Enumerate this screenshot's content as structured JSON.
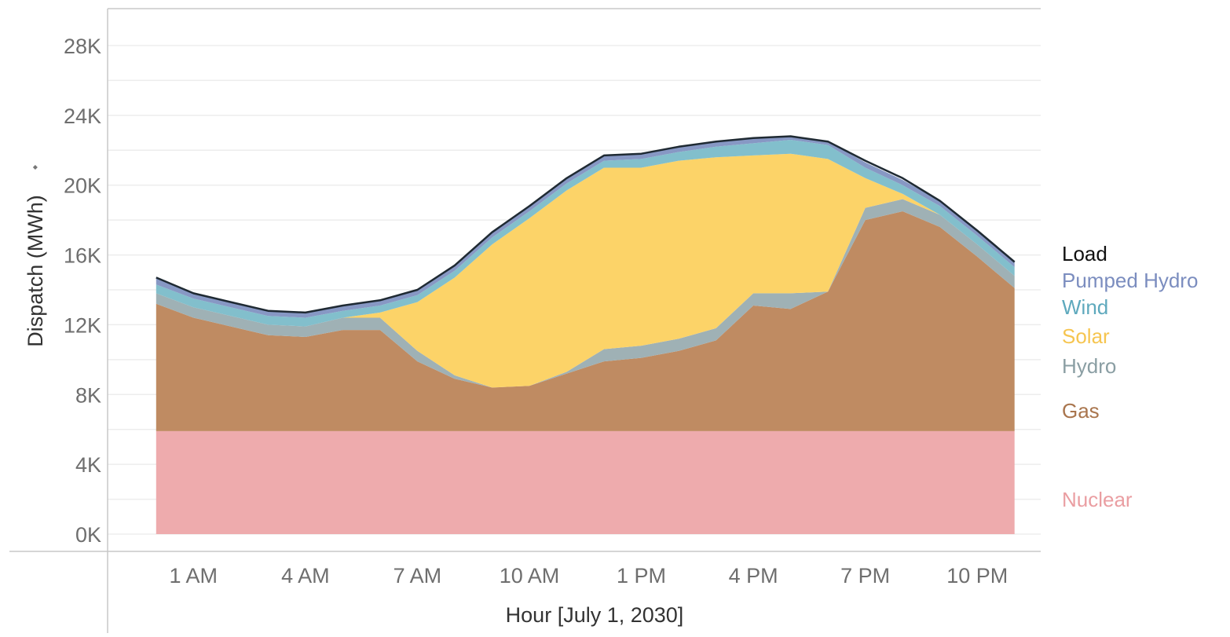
{
  "chart_data": {
    "type": "area",
    "stacked": true,
    "xlabel": "Hour [July 1, 2030]",
    "ylabel": "Dispatch (MWh)",
    "ylabel_sort_marker": "⬩",
    "ylim": [
      0,
      30000
    ],
    "yticks": [
      0,
      4000,
      8000,
      12000,
      16000,
      20000,
      24000,
      28000
    ],
    "ytick_labels": [
      "0K",
      "4K",
      "8K",
      "12K",
      "16K",
      "20K",
      "24K",
      "28K"
    ],
    "x_hours": [
      0,
      1,
      2,
      3,
      4,
      5,
      6,
      7,
      8,
      9,
      10,
      11,
      12,
      13,
      14,
      15,
      16,
      17,
      18,
      19,
      20,
      21,
      22,
      23
    ],
    "xlim": [
      -1.3,
      23.7
    ],
    "xticks": [
      1,
      4,
      7,
      10,
      13,
      16,
      19,
      22
    ],
    "xtick_labels": [
      "1 AM",
      "4 AM",
      "7 AM",
      "10 AM",
      "1 PM",
      "4 PM",
      "7 PM",
      "10 PM"
    ],
    "series": [
      {
        "name": "Nuclear",
        "color": "#eeabad",
        "values": [
          5900,
          5900,
          5900,
          5900,
          5900,
          5900,
          5900,
          5900,
          5900,
          5900,
          5900,
          5900,
          5900,
          5900,
          5900,
          5900,
          5900,
          5900,
          5900,
          5900,
          5900,
          5900,
          5900,
          5900
        ]
      },
      {
        "name": "Gas",
        "color": "#bf8b62",
        "values": [
          7300,
          6500,
          6000,
          5500,
          5400,
          5800,
          5800,
          4000,
          3000,
          2500,
          2600,
          3300,
          4000,
          4200,
          4600,
          5200,
          7200,
          7000,
          8000,
          12100,
          12600,
          11700,
          10000,
          8200
        ]
      },
      {
        "name": "Hydro",
        "color": "#9fb1b5",
        "values": [
          600,
          600,
          600,
          600,
          600,
          700,
          700,
          600,
          200,
          0,
          0,
          100,
          700,
          700,
          700,
          700,
          700,
          900,
          0,
          700,
          700,
          700,
          700,
          700
        ]
      },
      {
        "name": "Solar",
        "color": "#fcd368",
        "values": [
          0,
          0,
          0,
          0,
          0,
          0,
          300,
          2800,
          5600,
          8200,
          9600,
          10400,
          10400,
          10200,
          10200,
          9800,
          7900,
          8000,
          7600,
          1700,
          300,
          0,
          0,
          0
        ]
      },
      {
        "name": "Wind",
        "color": "#82bfcc",
        "values": [
          500,
          500,
          500,
          500,
          500,
          400,
          400,
          400,
          400,
          400,
          400,
          400,
          400,
          500,
          500,
          600,
          700,
          800,
          800,
          600,
          500,
          500,
          500,
          500
        ]
      },
      {
        "name": "Pumped Hydro",
        "color": "#8798c4",
        "values": [
          400,
          300,
          300,
          300,
          300,
          300,
          300,
          300,
          300,
          300,
          300,
          300,
          300,
          300,
          300,
          300,
          300,
          200,
          200,
          300,
          300,
          300,
          300,
          300
        ]
      }
    ],
    "load": {
      "name": "Load",
      "color": "#1f2a33",
      "values": [
        14700,
        13800,
        13300,
        12800,
        12700,
        13100,
        13400,
        14000,
        15400,
        17300,
        18800,
        20400,
        21700,
        21800,
        22200,
        22500,
        22700,
        22800,
        22500,
        21400,
        20400,
        19100,
        17400,
        15600
      ]
    },
    "legend": {
      "placement": "right",
      "entries": [
        {
          "label": "Load",
          "color": "#111111"
        },
        {
          "label": "Pumped Hydro",
          "color": "#7b8dbf"
        },
        {
          "label": "Wind",
          "color": "#5ea9bd"
        },
        {
          "label": "Solar",
          "color": "#f6c550"
        },
        {
          "label": "Hydro",
          "color": "#8a9ea3"
        },
        {
          "label": "Gas",
          "color": "#a9754d"
        },
        {
          "label": "Nuclear",
          "color": "#ea9ea2"
        }
      ]
    }
  }
}
